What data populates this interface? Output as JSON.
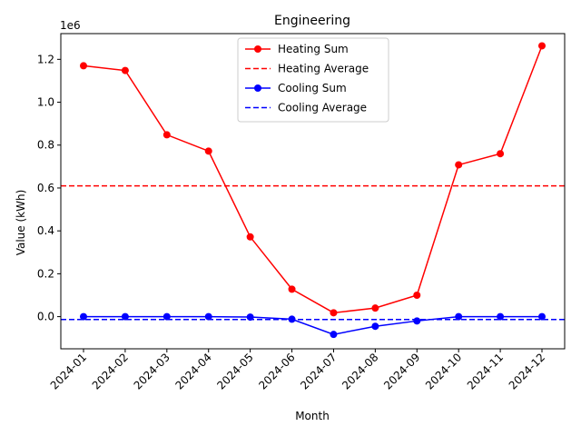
{
  "chart_data": {
    "type": "line",
    "title": "Engineering",
    "xlabel": "Month",
    "ylabel": "Value (kWh)",
    "y_scale_label": "1e6",
    "ylim": [
      -150000,
      1320000
    ],
    "yticks": [
      0.0,
      0.2,
      0.4,
      0.6,
      0.8,
      1.0,
      1.2
    ],
    "ytick_labels": [
      "0.0",
      "0.2",
      "0.4",
      "0.6",
      "0.8",
      "1.0",
      "1.2"
    ],
    "ytick_multiplier": 1000000,
    "grid": false,
    "legend_position": "top-center",
    "categories": [
      "2024-01",
      "2024-02",
      "2024-03",
      "2024-04",
      "2024-05",
      "2024-06",
      "2024-07",
      "2024-08",
      "2024-09",
      "2024-10",
      "2024-11",
      "2024-12"
    ],
    "series": [
      {
        "name": "Heating Sum",
        "color": "#ff0000",
        "style": "solid-marker",
        "values": [
          1170000,
          1148000,
          848000,
          772000,
          372000,
          128000,
          18000,
          40000,
          100000,
          708000,
          760000,
          1263000
        ]
      },
      {
        "name": "Heating Average",
        "color": "#ff0000",
        "style": "dashed",
        "value": 610000
      },
      {
        "name": "Cooling Sum",
        "color": "#0000ff",
        "style": "solid-marker",
        "values": [
          0,
          0,
          0,
          0,
          -2000,
          -12000,
          -83000,
          -45000,
          -20000,
          0,
          0,
          0
        ]
      },
      {
        "name": "Cooling Average",
        "color": "#0000ff",
        "style": "dashed",
        "value": -13500
      }
    ]
  }
}
